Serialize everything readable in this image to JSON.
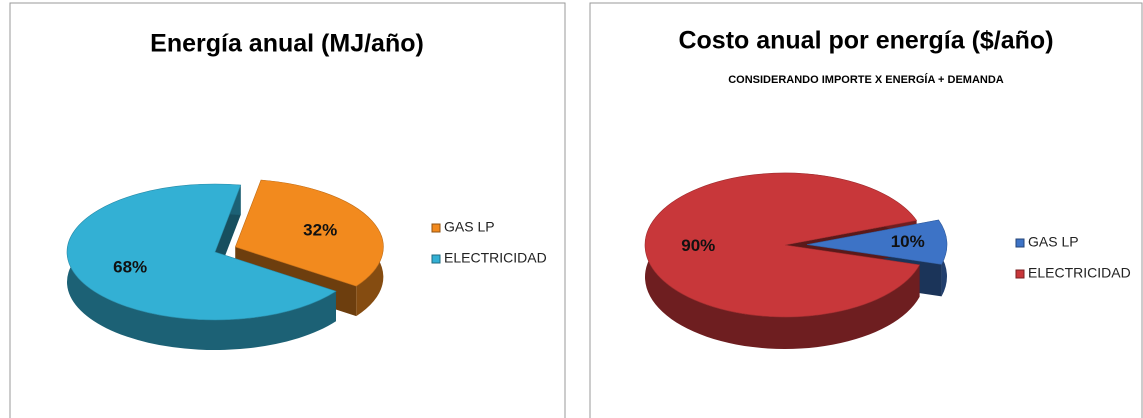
{
  "chart_data": [
    {
      "type": "pie",
      "title": "Energía anual (MJ/año)",
      "categories": [
        "GAS LP",
        "ELECTRICIDAD"
      ],
      "values": [
        32,
        68
      ],
      "value_labels": [
        "32%",
        "68%"
      ],
      "colors": [
        "#f28a1e",
        "#33b0d4"
      ],
      "exploded": [
        true,
        false
      ],
      "legend": "right"
    },
    {
      "type": "pie",
      "title": "Costo anual por energía  ($/año)",
      "subtitle": "CONSIDERANDO IMPORTE X ENERGÍA + DEMANDA",
      "categories": [
        "GAS LP",
        "ELECTRICIDAD"
      ],
      "values": [
        10,
        90
      ],
      "value_labels": [
        "10%",
        "90%"
      ],
      "colors": [
        "#3d73c6",
        "#c8373a"
      ],
      "exploded": [
        true,
        false
      ],
      "legend": "right"
    }
  ]
}
